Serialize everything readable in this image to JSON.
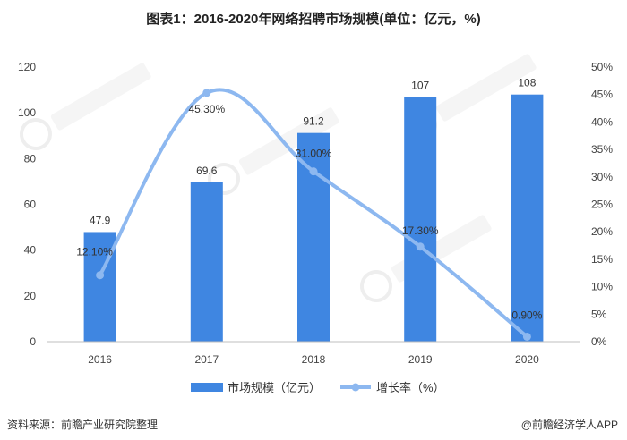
{
  "title": "图表1：2016-2020年网络招聘市场规模(单位：亿元，%)",
  "source": "资料来源：前瞻产业研究院整理",
  "brand": "@前瞻经济学人APP",
  "colors": {
    "bar": "#3f86e1",
    "line": "#8db8f0",
    "axis": "#bfbfbf"
  },
  "chart_data": {
    "type": "bar",
    "categories": [
      "2016",
      "2017",
      "2018",
      "2019",
      "2020"
    ],
    "series": [
      {
        "name": "市场规模（亿元）",
        "type": "bar",
        "axis": "left",
        "values": [
          47.9,
          69.6,
          91.2,
          107,
          108
        ],
        "labels": [
          "47.9",
          "69.6",
          "91.2",
          "107",
          "108"
        ]
      },
      {
        "name": "增长率（%）",
        "type": "line",
        "axis": "right",
        "values": [
          12.1,
          45.3,
          31.0,
          17.3,
          0.9
        ],
        "labels": [
          "12.10%",
          "45.30%",
          "31.00%",
          "17.30%",
          "0.90%"
        ]
      }
    ],
    "y_left": {
      "min": 0,
      "max": 120,
      "ticks": [
        "0",
        "20",
        "40",
        "60",
        "80",
        "100",
        "120"
      ]
    },
    "y_right": {
      "min": 0,
      "max": 50,
      "ticks": [
        "0%",
        "5%",
        "10%",
        "15%",
        "20%",
        "25%",
        "30%",
        "35%",
        "40%",
        "45%",
        "50%"
      ]
    },
    "legend": "bottom",
    "grid": false
  }
}
